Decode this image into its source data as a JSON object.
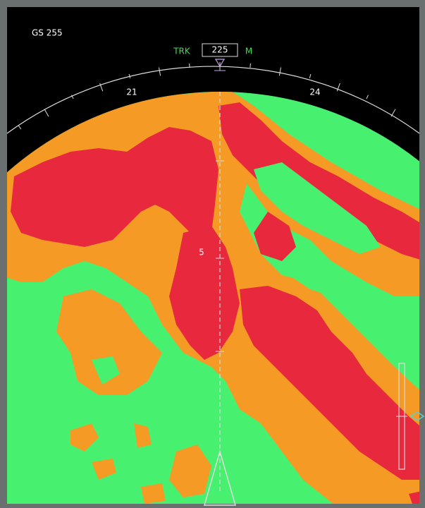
{
  "header": {
    "ground_speed": "GS 255",
    "track_label": "TRK",
    "heading": "225",
    "heading_ref": "M"
  },
  "compass": {
    "labels": [
      "21",
      "24"
    ]
  },
  "range": {
    "label": "5"
  }
}
